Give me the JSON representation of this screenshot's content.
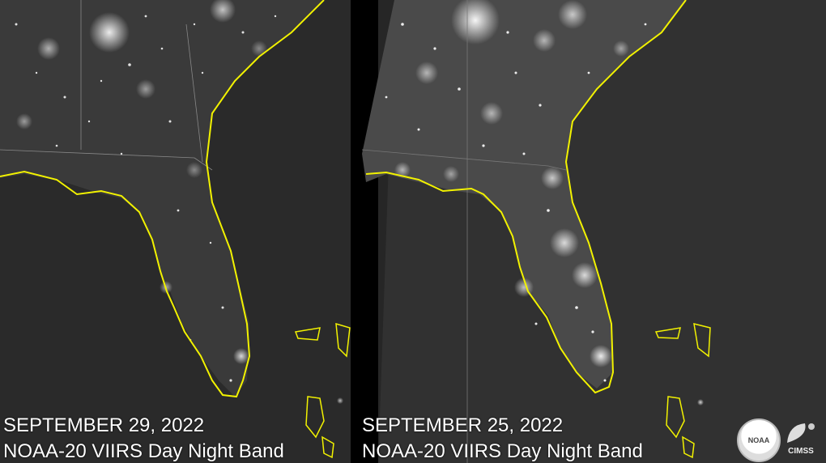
{
  "panels": [
    {
      "date": "SEPTEMBER 29, 2022",
      "product": "NOAA-20 VIIRS Day Night Band"
    },
    {
      "date": "SEPTEMBER 25, 2022",
      "product": "NOAA-20 VIIRS Day Night Band"
    }
  ],
  "logos": {
    "noaa": "NOAA",
    "cimss": "CIMSS"
  },
  "colors": {
    "coastline": "#f2f200",
    "city_lights": "#ffffff",
    "background_land": "#2a2a2a",
    "ocean": "#262626"
  }
}
